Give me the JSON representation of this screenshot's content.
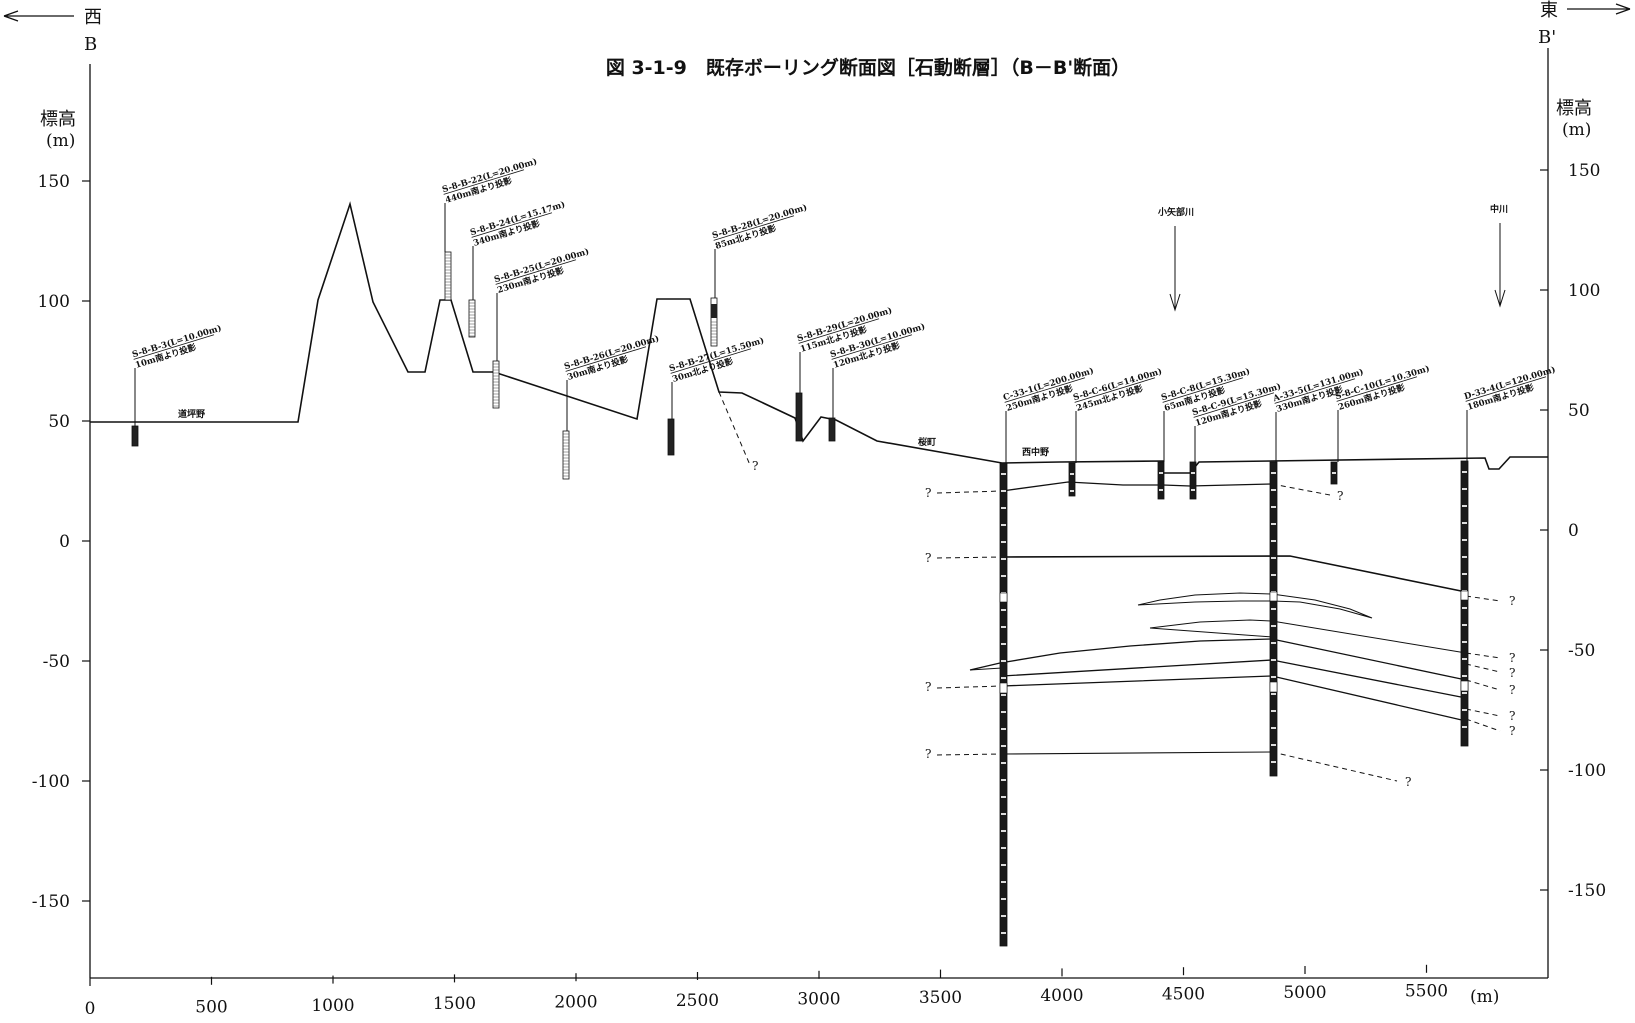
{
  "title": "図 3-1-9　既存ボーリング断面図［石動断層］（B－B'断面）",
  "direction": {
    "west_label": "西",
    "west_section": "B",
    "east_label": "東",
    "east_section": "B'"
  },
  "axes": {
    "y_label_main": "標高",
    "y_label_unit": "(m)",
    "x_unit": "(m)",
    "x_ticks": [
      "0",
      "500",
      "1000",
      "1500",
      "2000",
      "2500",
      "3000",
      "3500",
      "4000",
      "4500",
      "5000",
      "5500"
    ],
    "y_ticks_left": [
      "150",
      "100",
      "50",
      "0",
      "-50",
      "-100",
      "-150"
    ],
    "y_ticks_right": [
      "150",
      "100",
      "50",
      "0",
      "-50",
      "-100",
      "-150"
    ]
  },
  "places": {
    "dotsubono": "道坪野",
    "sakuramachi": "桜町",
    "nishinakano": "西中野",
    "koyabe_river": "小矢部川",
    "naka_river": "中川"
  },
  "boreholes": [
    {
      "line1": "S-8-B-3(L=10.00m)",
      "line2": "10m南より投影"
    },
    {
      "line1": "S-8-B-22(L=20.00m)",
      "line2": "440m南より投影"
    },
    {
      "line1": "S-8-B-24(L=15.17m)",
      "line2": "340m南より投影"
    },
    {
      "line1": "S-8-B-25(L=20.00m)",
      "line2": "230m南より投影"
    },
    {
      "line1": "S-8-B-26(L=20.00m)",
      "line2": "30m南より投影"
    },
    {
      "line1": "S-8-B-27(L=15.50m)",
      "line2": "30m北より投影"
    },
    {
      "line1": "S-8-B-28(L=20.00m)",
      "line2": "85m北より投影"
    },
    {
      "line1": "S-8-B-29(L=20.00m)",
      "line2": "115m北より投影"
    },
    {
      "line1": "S-8-B-30(L=10.00m)",
      "line2": "120m北より投影"
    },
    {
      "line1": "C-33-1(L=200.00m)",
      "line2": "250m南より投影"
    },
    {
      "line1": "S-8-C-6(L=14.00m)",
      "line2": "245m北より投影"
    },
    {
      "line1": "S-8-C-8(L=15.30m)",
      "line2": "65m南より投影"
    },
    {
      "line1": "S-8-C-9(L=15.30m)",
      "line2": "120m南より投影"
    },
    {
      "line1": "A-33-5(L=131.00m)",
      "line2": "330m南より投影"
    },
    {
      "line1": "S-8-C-10(L=10.30m)",
      "line2": "260m南より投影"
    },
    {
      "line1": "D-33-4(L=120.00m)",
      "line2": "180m南より投影"
    }
  ],
  "unknown_mark": "?",
  "colors": {
    "ink": "#111111",
    "paper": "#ffffff"
  }
}
